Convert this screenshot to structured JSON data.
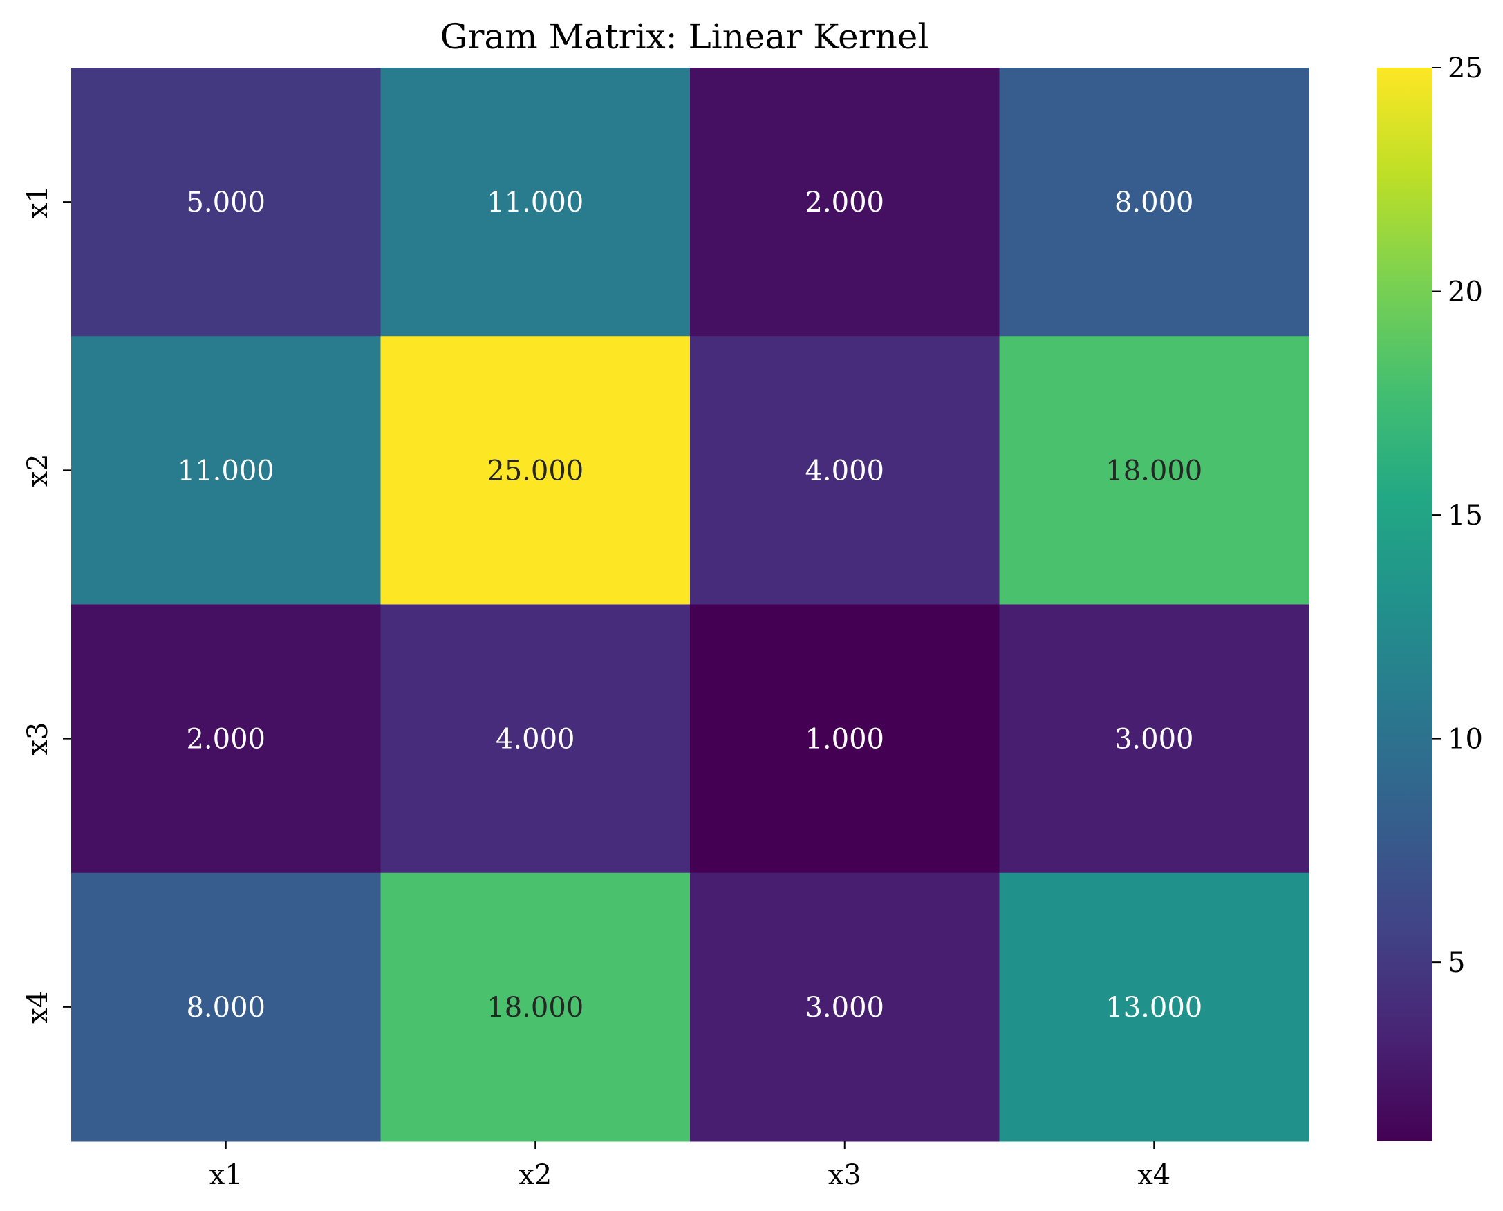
{
  "chart_data": {
    "type": "heatmap",
    "title": "Gram Matrix: Linear Kernel",
    "xlabel": "",
    "ylabel": "",
    "x_categories": [
      "x1",
      "x2",
      "x3",
      "x4"
    ],
    "y_categories": [
      "x1",
      "x2",
      "x3",
      "x4"
    ],
    "values": [
      [
        5,
        11,
        2,
        8
      ],
      [
        11,
        25,
        4,
        18
      ],
      [
        2,
        4,
        1,
        3
      ],
      [
        8,
        18,
        3,
        13
      ]
    ],
    "cell_labels": [
      [
        "5.000",
        "11.000",
        "2.000",
        "8.000"
      ],
      [
        "11.000",
        "25.000",
        "4.000",
        "18.000"
      ],
      [
        "2.000",
        "4.000",
        "1.000",
        "3.000"
      ],
      [
        "8.000",
        "18.000",
        "3.000",
        "13.000"
      ]
    ],
    "colormap": "viridis",
    "colorbar": {
      "range": [
        1,
        25
      ],
      "ticks": [
        5,
        10,
        15,
        20,
        25
      ],
      "tick_labels": [
        "5",
        "10",
        "15",
        "20",
        "25"
      ]
    },
    "grid": false,
    "legend": "colorbar-right"
  }
}
